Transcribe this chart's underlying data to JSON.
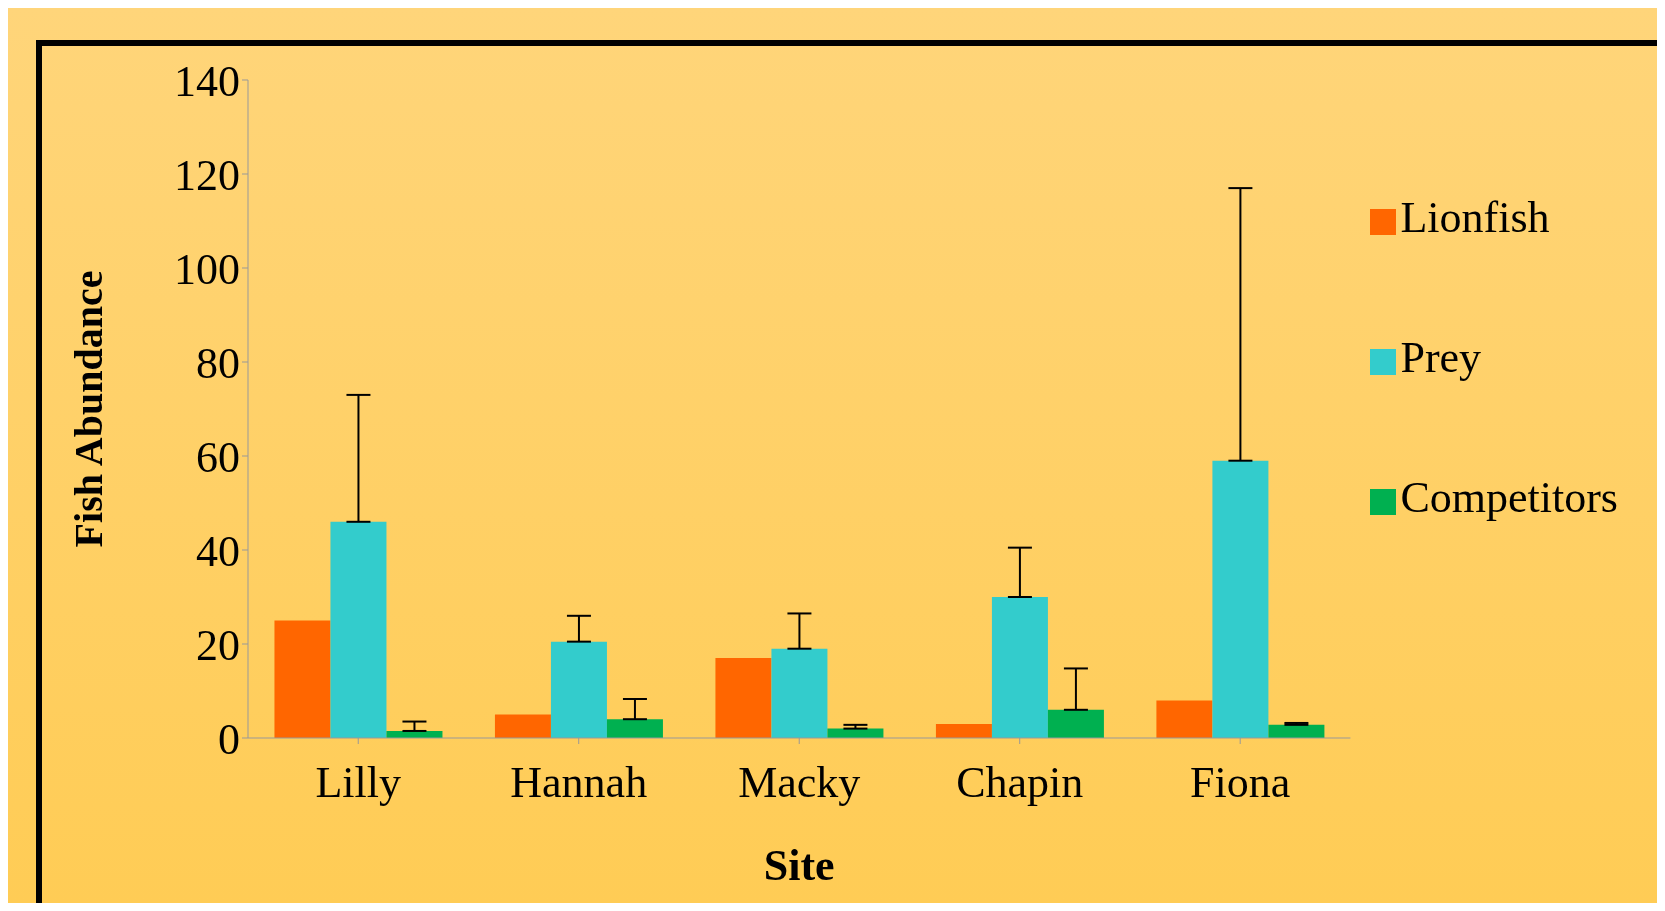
{
  "chart_data": {
    "type": "bar",
    "xlabel": "Site",
    "ylabel": "Fish Abundance",
    "categories": [
      "Lilly",
      "Hannah",
      "Macky",
      "Chapin",
      "Fiona"
    ],
    "series": [
      {
        "name": "Lionfish",
        "color": "#ff6600",
        "values": [
          25,
          5,
          17,
          3,
          8
        ]
      },
      {
        "name": "Prey",
        "color": "#33cccc",
        "values": [
          46,
          20.5,
          19,
          30,
          59
        ],
        "errors": [
          [
            46,
            73
          ],
          [
            20.5,
            26
          ],
          [
            19,
            26.5
          ],
          [
            30,
            40.5
          ],
          [
            59,
            117
          ]
        ]
      },
      {
        "name": "Competitors",
        "color": "#00b050",
        "values": [
          1.5,
          4,
          2,
          6,
          2.8
        ],
        "errors": [
          [
            1.5,
            3.5
          ],
          [
            4,
            8.3
          ],
          [
            2,
            2.8
          ],
          [
            6,
            14.8
          ],
          [
            2.8,
            3.2
          ]
        ]
      }
    ],
    "ylim": [
      0,
      140
    ],
    "yticks": [
      0,
      20,
      40,
      60,
      80,
      100,
      120,
      140
    ],
    "grid": false,
    "legend": "right"
  }
}
